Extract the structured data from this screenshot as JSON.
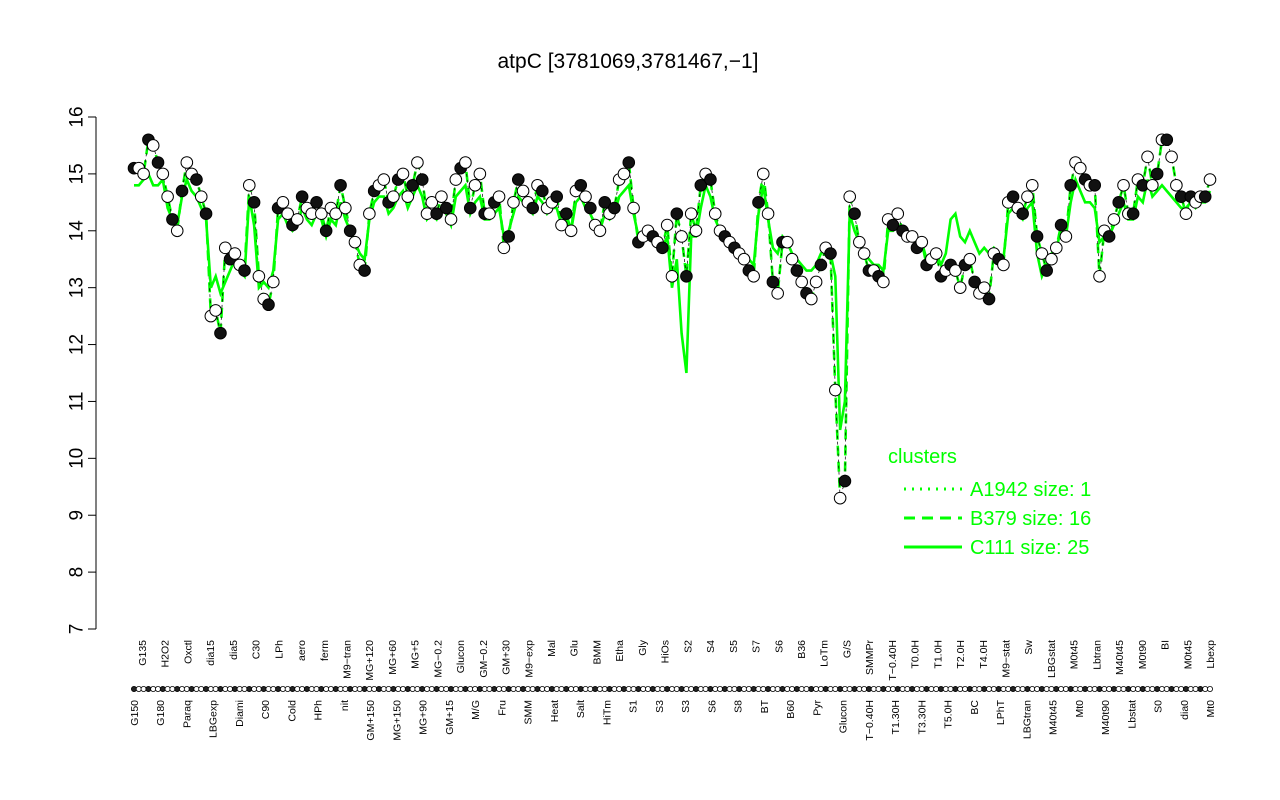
{
  "chart_data": {
    "type": "line",
    "title": "atpC [3781069,3781467,−1]",
    "xlabel": "",
    "ylabel": "",
    "ylim": [
      7,
      16
    ],
    "yticks": [
      7,
      8,
      9,
      10,
      11,
      12,
      13,
      14,
      15,
      16
    ],
    "series_color": "#00ff00",
    "point_fill_dark": "#111111",
    "point_fill_light": "#ffffff",
    "categories_top": [
      "G135",
      "H2O2",
      "Oxctl",
      "dia15",
      "dia5",
      "C30",
      "LPh",
      "aero",
      "ferm",
      "M9−tran",
      "MG+120",
      "MG+60",
      "MG+5",
      "MG−0.2",
      "Glucon",
      "GM−0.2",
      "GM+30",
      "M9−exp",
      "Mal",
      "Glu",
      "BMM",
      "Etha",
      "Gly",
      "HiOs",
      "S2",
      "S4",
      "S5",
      "S7",
      "S6",
      "B36",
      "LoTm",
      "G/S",
      "SMMPr",
      "T−0.40H",
      "T0.0H",
      "T1.0H",
      "T2.0H",
      "T4.0H",
      "M9−stat",
      "Sw",
      "LBGstat",
      "M0t45",
      "Lbtran",
      "M40t45",
      "M0t90",
      "BI",
      "M0t45",
      "Lbexp"
    ],
    "categories_bottom": [
      "G150",
      "G180",
      "Paraq",
      "LBGexp",
      "Diami",
      "C90",
      "Cold",
      "HPh",
      "nit",
      "GM+150",
      "MG+150",
      "MG+90",
      "GM+15",
      "M/G",
      "Fru",
      "SMM",
      "Heat",
      "Salt",
      "HiTm",
      "S1",
      "S3",
      "S3",
      "S6",
      "S8",
      "BT",
      "B60",
      "Pyr",
      "Glucon",
      "T−0.40H",
      "T1.30H",
      "T3.30H",
      "T5.0H",
      "BC",
      "LPhT",
      "LBGtran",
      "M40t45",
      "Mt0",
      "M40t90",
      "Lbstat",
      "S0",
      "dia0",
      "Mt0"
    ],
    "legend": {
      "title": "clusters",
      "entries": [
        {
          "label": "A1942 size: 1",
          "style": "dotted"
        },
        {
          "label": "B379 size: 16",
          "style": "dashed"
        },
        {
          "label": "C111 size: 25",
          "style": "solid"
        }
      ]
    },
    "series": [
      {
        "style": "dashed",
        "values": [
          15.1,
          15.1,
          15.0,
          15.6,
          15.5,
          15.2,
          15.0,
          14.6,
          14.2,
          14.0,
          14.7,
          15.2,
          15.0,
          14.9,
          14.6,
          14.3,
          12.5,
          12.6,
          12.2,
          13.7,
          13.5,
          13.6,
          13.4,
          13.3,
          14.8,
          14.5,
          13.2,
          12.8,
          12.7,
          13.1,
          14.4,
          14.5,
          14.3,
          14.1,
          14.2,
          14.6,
          14.4,
          14.3,
          14.5,
          14.3,
          14.0,
          14.4,
          14.3,
          14.8,
          14.4,
          14.0,
          13.8,
          13.4,
          13.3,
          14.3,
          14.7,
          14.8,
          14.9,
          14.5,
          14.6,
          14.9,
          15.0,
          14.6,
          14.8,
          15.2,
          14.9,
          14.3,
          14.5,
          14.3,
          14.6,
          14.4,
          14.2,
          14.9,
          15.1,
          15.2,
          14.4,
          14.8,
          15.0,
          14.3,
          14.3,
          14.5,
          14.6,
          13.7,
          13.9,
          14.5,
          14.9,
          14.7,
          14.5,
          14.4,
          14.8,
          14.7,
          14.4,
          14.5,
          14.6,
          14.1,
          14.3,
          14.0,
          14.7,
          14.8,
          14.6,
          14.4,
          14.1,
          14.0,
          14.5,
          14.3,
          14.4,
          14.9,
          15.0,
          15.2,
          14.4,
          13.8,
          13.9,
          14.0,
          13.9,
          13.8,
          13.7,
          14.1,
          13.2,
          14.3,
          13.9,
          13.2,
          14.3,
          14.0,
          14.8,
          15.0,
          14.9,
          14.3,
          14.0,
          13.9,
          13.8,
          13.7,
          13.6,
          13.5,
          13.3,
          13.2,
          14.5,
          15.0,
          14.3,
          13.1,
          12.9,
          13.8,
          13.8,
          13.5,
          13.3,
          13.1,
          12.9,
          12.8,
          13.1,
          13.4,
          13.7,
          13.6,
          11.2,
          9.3,
          9.6,
          14.6,
          14.3,
          13.8,
          13.6,
          13.3,
          13.3,
          13.2,
          13.1,
          14.2,
          14.1,
          14.3,
          14.0,
          13.9,
          13.9,
          13.7,
          13.8,
          13.4,
          13.5,
          13.6,
          13.2,
          13.3,
          13.4,
          13.3,
          13.0,
          13.4,
          13.5,
          13.1,
          12.9,
          13.0,
          12.8,
          13.6,
          13.5,
          13.4,
          14.5,
          14.6,
          14.4,
          14.3,
          14.6,
          14.8,
          13.9,
          13.6,
          13.3,
          13.5,
          13.7,
          14.1,
          13.9,
          14.8,
          15.2,
          15.1,
          14.9,
          14.8,
          14.8,
          13.2,
          14.0,
          13.9,
          14.2,
          14.5,
          14.8,
          14.3,
          14.3,
          14.9,
          14.8,
          15.3,
          14.8,
          15.0,
          15.6,
          15.6,
          15.3,
          14.8,
          14.6,
          14.3,
          14.6,
          14.5,
          14.6,
          14.6,
          14.9
        ]
      },
      {
        "style": "solid",
        "values": [
          14.8,
          14.8,
          14.9,
          15.0,
          14.8,
          14.8,
          14.9,
          14.4,
          14.2,
          14.1,
          14.6,
          14.9,
          14.7,
          14.6,
          14.4,
          14.2,
          13.0,
          13.2,
          12.9,
          13.1,
          13.3,
          13.5,
          13.3,
          13.2,
          14.6,
          14.1,
          13.0,
          13.1,
          13.0,
          13.3,
          14.2,
          14.3,
          14.1,
          14.0,
          14.1,
          14.4,
          14.2,
          14.1,
          14.3,
          14.2,
          13.9,
          14.2,
          14.1,
          14.5,
          14.2,
          14.0,
          13.8,
          13.6,
          13.5,
          14.2,
          14.5,
          14.6,
          14.6,
          14.3,
          14.4,
          14.6,
          14.7,
          14.4,
          14.6,
          14.8,
          14.6,
          14.2,
          14.3,
          14.2,
          14.4,
          14.3,
          14.1,
          14.6,
          14.7,
          14.8,
          14.3,
          14.5,
          14.6,
          14.2,
          14.2,
          14.3,
          14.4,
          13.9,
          14.0,
          14.3,
          14.6,
          14.5,
          14.4,
          14.3,
          14.6,
          14.5,
          14.3,
          14.4,
          14.4,
          14.1,
          14.2,
          14.0,
          14.5,
          14.6,
          14.4,
          14.3,
          14.1,
          14.0,
          14.3,
          14.2,
          14.3,
          14.6,
          14.7,
          14.8,
          14.3,
          13.9,
          13.9,
          13.9,
          13.8,
          13.8,
          13.7,
          13.9,
          13.0,
          13.5,
          12.2,
          11.5,
          13.9,
          13.9,
          14.4,
          14.8,
          14.6,
          14.2,
          14.0,
          13.9,
          13.8,
          13.7,
          13.7,
          13.6,
          13.5,
          13.4,
          14.3,
          14.8,
          14.2,
          13.7,
          13.6,
          13.9,
          13.8,
          13.6,
          13.5,
          13.4,
          13.3,
          13.3,
          13.4,
          13.6,
          13.7,
          13.6,
          13.2,
          10.5,
          11.0,
          14.3,
          14.0,
          13.8,
          13.6,
          13.5,
          13.4,
          13.4,
          13.3,
          14.0,
          14.0,
          14.1,
          14.0,
          13.9,
          13.9,
          13.7,
          13.8,
          13.5,
          13.6,
          13.6,
          13.4,
          13.6,
          14.2,
          14.3,
          13.9,
          13.8,
          14.0,
          13.8,
          13.6,
          13.7,
          13.6,
          13.7,
          13.6,
          13.5,
          14.3,
          14.4,
          14.3,
          14.2,
          14.4,
          14.5,
          13.6,
          13.2,
          13.4,
          13.6,
          13.7,
          14.0,
          13.9,
          14.5,
          14.9,
          14.7,
          14.5,
          14.5,
          14.4,
          13.8,
          13.9,
          13.9,
          14.1,
          14.3,
          14.5,
          14.2,
          14.2,
          14.6,
          14.5,
          14.9,
          14.6,
          14.7,
          14.8,
          14.7,
          14.6,
          14.5,
          14.4,
          14.4,
          14.5,
          14.4,
          14.5,
          14.5,
          14.7
        ]
      },
      {
        "style": "points",
        "values": [
          15.1,
          15.1,
          15.0,
          15.6,
          15.5,
          15.2,
          15.0,
          14.6,
          14.2,
          14.0,
          14.7,
          15.2,
          15.0,
          14.9,
          14.6,
          14.3,
          12.5,
          12.6,
          12.2,
          13.7,
          13.5,
          13.6,
          13.4,
          13.3,
          14.8,
          14.5,
          13.2,
          12.8,
          12.7,
          13.1,
          14.4,
          14.5,
          14.3,
          14.1,
          14.2,
          14.6,
          14.4,
          14.3,
          14.5,
          14.3,
          14.0,
          14.4,
          14.3,
          14.8,
          14.4,
          14.0,
          13.8,
          13.4,
          13.3,
          14.3,
          14.7,
          14.8,
          14.9,
          14.5,
          14.6,
          14.9,
          15.0,
          14.6,
          14.8,
          15.2,
          14.9,
          14.3,
          14.5,
          14.3,
          14.6,
          14.4,
          14.2,
          14.9,
          15.1,
          15.2,
          14.4,
          14.8,
          15.0,
          14.3,
          14.3,
          14.5,
          14.6,
          13.7,
          13.9,
          14.5,
          14.9,
          14.7,
          14.5,
          14.4,
          14.8,
          14.7,
          14.4,
          14.5,
          14.6,
          14.1,
          14.3,
          14.0,
          14.7,
          14.8,
          14.6,
          14.4,
          14.1,
          14.0,
          14.5,
          14.3,
          14.4,
          14.9,
          15.0,
          15.2,
          14.4,
          13.8,
          13.9,
          14.0,
          13.9,
          13.8,
          13.7,
          14.1,
          13.2,
          14.3,
          13.9,
          13.2,
          14.3,
          14.0,
          14.8,
          15.0,
          14.9,
          14.3,
          14.0,
          13.9,
          13.8,
          13.7,
          13.6,
          13.5,
          13.3,
          13.2,
          14.5,
          15.0,
          14.3,
          13.1,
          12.9,
          13.8,
          13.8,
          13.5,
          13.3,
          13.1,
          12.9,
          12.8,
          13.1,
          13.4,
          13.7,
          13.6,
          11.2,
          9.3,
          9.6,
          14.6,
          14.3,
          13.8,
          13.6,
          13.3,
          13.3,
          13.2,
          13.1,
          14.2,
          14.1,
          14.3,
          14.0,
          13.9,
          13.9,
          13.7,
          13.8,
          13.4,
          13.5,
          13.6,
          13.2,
          13.3,
          13.4,
          13.3,
          13.0,
          13.4,
          13.5,
          13.1,
          12.9,
          13.0,
          12.8,
          13.6,
          13.5,
          13.4,
          14.5,
          14.6,
          14.4,
          14.3,
          14.6,
          14.8,
          13.9,
          13.6,
          13.3,
          13.5,
          13.7,
          14.1,
          13.9,
          14.8,
          15.2,
          15.1,
          14.9,
          14.8,
          14.8,
          13.2,
          14.0,
          13.9,
          14.2,
          14.5,
          14.8,
          14.3,
          14.3,
          14.9,
          14.8,
          15.3,
          14.8,
          15.0,
          15.6,
          15.6,
          15.3,
          14.8,
          14.6,
          14.3,
          14.6,
          14.5,
          14.6,
          14.6,
          14.9
        ]
      }
    ]
  }
}
